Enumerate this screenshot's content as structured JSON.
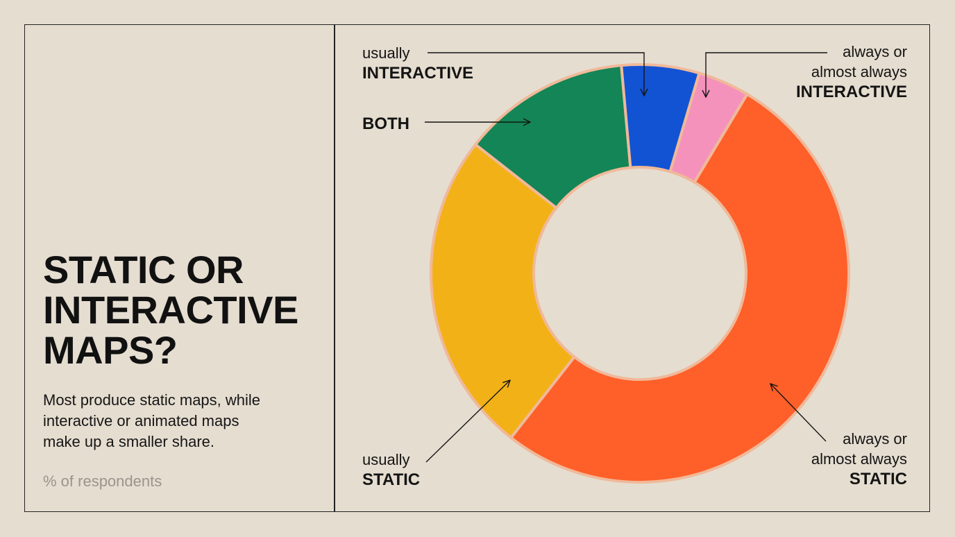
{
  "title_lines": [
    "STATIC OR",
    "INTERACTIVE",
    "MAPS?"
  ],
  "subtitle_lines": [
    "Most produce static maps, while",
    "interactive or animated maps",
    "make up a smaller share."
  ],
  "unit": "% of respondents",
  "chart_data": {
    "type": "pie",
    "donut": true,
    "slices": [
      {
        "id": "always-interactive",
        "label_lines": [
          "always or",
          "almost always"
        ],
        "label_bold": "INTERACTIVE",
        "value": 4,
        "color": "#F492BC"
      },
      {
        "id": "always-static",
        "label_lines": [
          "always or",
          "almost always"
        ],
        "label_bold": "STATIC",
        "value": 52,
        "color": "#FF5F28"
      },
      {
        "id": "usually-static",
        "label_lines": [
          "usually"
        ],
        "label_bold": "STATIC",
        "value": 25,
        "color": "#F2B217"
      },
      {
        "id": "both",
        "label_lines": [],
        "label_bold": "BOTH",
        "value": 13,
        "color": "#148556"
      },
      {
        "id": "usually-interactive",
        "label_lines": [
          "usually"
        ],
        "label_bold": "INTERACTIVE",
        "value": 6,
        "color": "#1253D4"
      }
    ]
  }
}
